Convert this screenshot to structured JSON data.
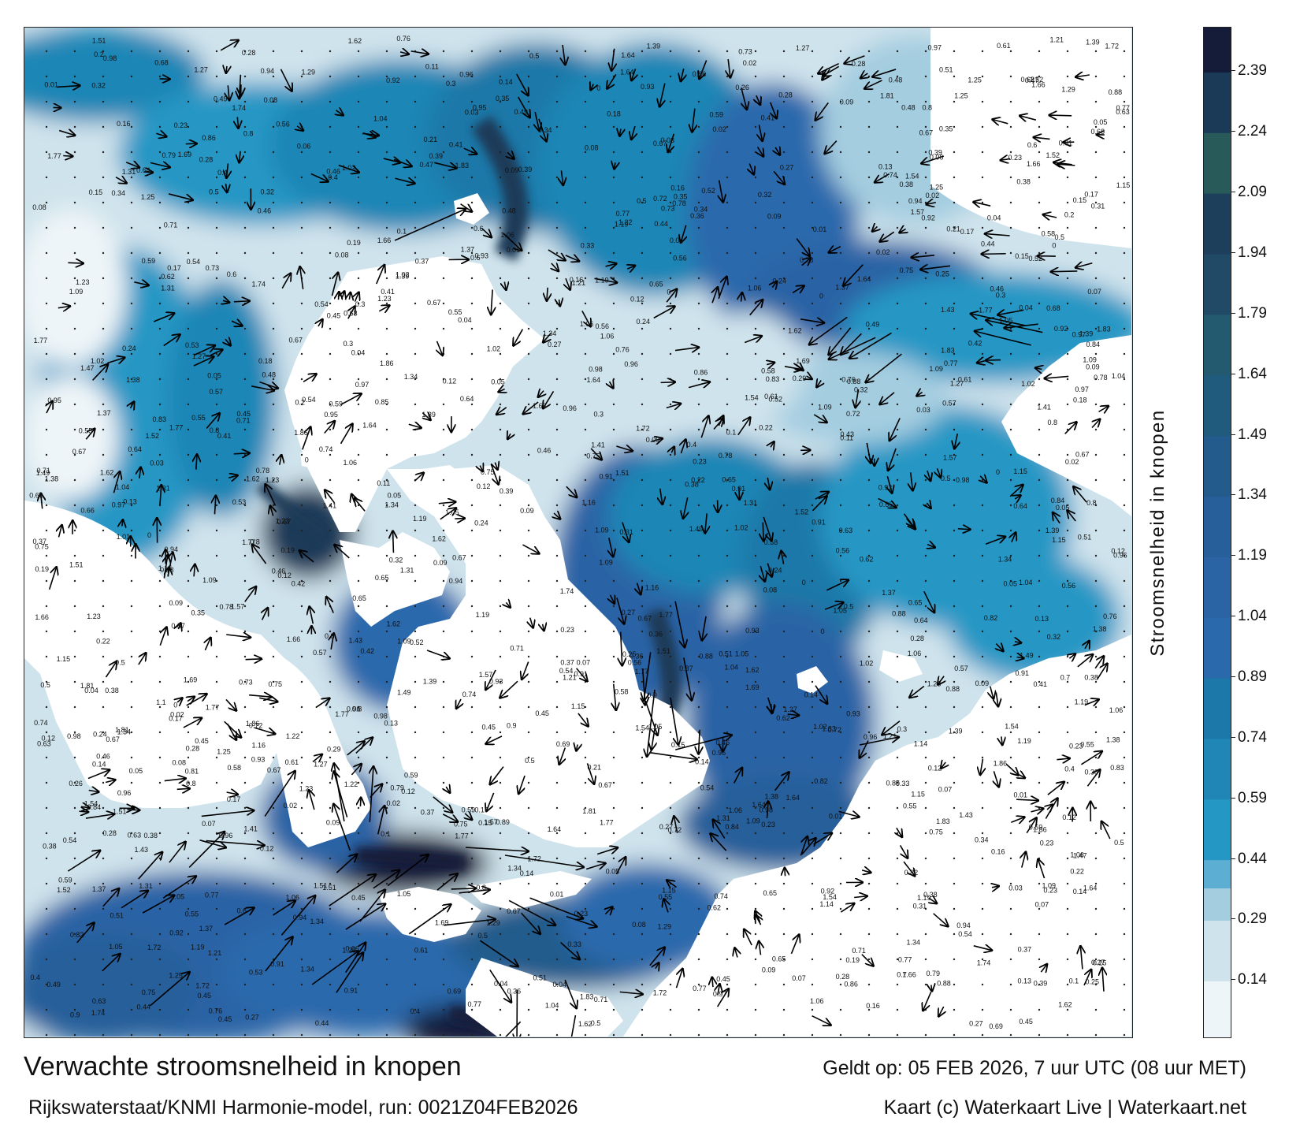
{
  "map": {
    "land_color": "#ffffff",
    "current_arrow_color": "#000000",
    "labels": [
      {
        "text": "0.46"
      },
      {
        "text": "0.44"
      },
      {
        "text": "0.33"
      },
      {
        "text": "0.45"
      },
      {
        "text": "0.3"
      },
      {
        "text": "0.35"
      },
      {
        "text": "0.13"
      },
      {
        "text": "0.32"
      },
      {
        "text": "0.12"
      },
      {
        "text": "0.14"
      },
      {
        "text": "0.17"
      },
      {
        "text": "0.11"
      },
      {
        "text": "0.09"
      },
      {
        "text": "0.1"
      },
      {
        "text": "0.08"
      },
      {
        "text": "0.07"
      },
      {
        "text": "0.06"
      },
      {
        "text": "0.05"
      },
      {
        "text": "0.04"
      },
      {
        "text": "0.03"
      },
      {
        "text": "0.43"
      },
      {
        "text": "0.47"
      },
      {
        "text": "0.56"
      },
      {
        "text": "0.27"
      },
      {
        "text": "0.24"
      },
      {
        "text": "0.12"
      },
      {
        "text": "0.02"
      },
      {
        "text": "0.61"
      },
      {
        "text": "0.51"
      },
      {
        "text": "0.53"
      },
      {
        "text": "1.22"
      },
      {
        "text": "1.23"
      },
      {
        "text": "0.93"
      },
      {
        "text": "1.25"
      },
      {
        "text": "0.52"
      },
      {
        "text": "0.71"
      },
      {
        "text": "0.8"
      },
      {
        "text": "0.75"
      },
      {
        "text": "0.6"
      },
      {
        "text": "0.98"
      },
      {
        "text": "0.76"
      },
      {
        "text": "0.62"
      },
      {
        "text": "0.29"
      },
      {
        "text": "0.23"
      },
      {
        "text": "0.28"
      },
      {
        "text": "0.19"
      },
      {
        "text": "0.2"
      },
      {
        "text": "0.21"
      },
      {
        "text": "0.22"
      },
      {
        "text": "0.26"
      },
      {
        "text": "0.36"
      },
      {
        "text": "0.5"
      },
      {
        "text": "0.55"
      },
      {
        "text": "0.57"
      },
      {
        "text": "0.64"
      },
      {
        "text": "0.72"
      },
      {
        "text": "0.78"
      },
      {
        "text": "0.84"
      },
      {
        "text": "0.92"
      },
      {
        "text": "0.95"
      },
      {
        "text": "1.1"
      },
      {
        "text": "1.16"
      },
      {
        "text": "1.21"
      },
      {
        "text": "1.29"
      },
      {
        "text": "1.41"
      },
      {
        "text": "1.47"
      },
      {
        "text": "1.52"
      },
      {
        "text": "1.57"
      },
      {
        "text": "1.62"
      },
      {
        "text": "1.83"
      },
      {
        "text": "1.34"
      },
      {
        "text": "1.38"
      },
      {
        "text": "1.04"
      },
      {
        "text": "1.06"
      },
      {
        "text": "0.01"
      },
      {
        "text": "0"
      },
      {
        "text": "0.15"
      },
      {
        "text": "0.16"
      },
      {
        "text": "0.18"
      },
      {
        "text": "0.25"
      },
      {
        "text": "0.31"
      },
      {
        "text": "0.34"
      },
      {
        "text": "0.37"
      },
      {
        "text": "0.38"
      },
      {
        "text": "0.39"
      },
      {
        "text": "0.4"
      },
      {
        "text": "0.41"
      },
      {
        "text": "0.42"
      },
      {
        "text": "0.48"
      },
      {
        "text": "0.49"
      },
      {
        "text": "0.54"
      },
      {
        "text": "0.58"
      },
      {
        "text": "0.59"
      },
      {
        "text": "0.63"
      },
      {
        "text": "0.65"
      },
      {
        "text": "0.66"
      },
      {
        "text": "0.67"
      },
      {
        "text": "0.68"
      },
      {
        "text": "0.69"
      },
      {
        "text": "0.7"
      },
      {
        "text": "0.73"
      },
      {
        "text": "0.74"
      },
      {
        "text": "0.77"
      },
      {
        "text": "0.79"
      },
      {
        "text": "0.81"
      },
      {
        "text": "0.82"
      },
      {
        "text": "0.83"
      },
      {
        "text": "0.85"
      },
      {
        "text": "0.86"
      },
      {
        "text": "0.87"
      },
      {
        "text": "0.88"
      },
      {
        "text": "0.89"
      },
      {
        "text": "0.9"
      },
      {
        "text": "0.91"
      },
      {
        "text": "0.94"
      },
      {
        "text": "0.96"
      },
      {
        "text": "0.97"
      },
      {
        "text": "1.01"
      },
      {
        "text": "1.02"
      },
      {
        "text": "1.05"
      },
      {
        "text": "1.09"
      },
      {
        "text": "1.14"
      },
      {
        "text": "1.15"
      },
      {
        "text": "1.19"
      },
      {
        "text": "1.27"
      },
      {
        "text": "1.31"
      },
      {
        "text": "1.37"
      },
      {
        "text": "1.39"
      },
      {
        "text": "1.43"
      },
      {
        "text": "1.49"
      },
      {
        "text": "1.51"
      },
      {
        "text": "1.54"
      },
      {
        "text": "1.64"
      },
      {
        "text": "1.66"
      },
      {
        "text": "1.69"
      },
      {
        "text": "1.72"
      },
      {
        "text": "1.77"
      },
      {
        "text": "1.81"
      },
      {
        "text": "1.86"
      },
      {
        "text": "1.74"
      }
    ]
  },
  "colorbar": {
    "label": "Stroomsnelheid in knopen",
    "ticks": [
      "2.39",
      "2.24",
      "2.09",
      "1.94",
      "1.79",
      "1.64",
      "1.49",
      "1.34",
      "1.19",
      "1.04",
      "0.89",
      "0.74",
      "0.59",
      "0.44",
      "0.29",
      "0.14"
    ],
    "tick_values": [
      2.39,
      2.24,
      2.09,
      1.94,
      1.79,
      1.64,
      1.49,
      1.34,
      1.19,
      1.04,
      0.89,
      0.74,
      0.59,
      0.44,
      0.29,
      0.14
    ],
    "range": [
      0,
      2.5
    ],
    "bands": [
      {
        "from": 0.0,
        "to": 0.14,
        "color": "#eef5f8"
      },
      {
        "from": 0.14,
        "to": 0.29,
        "color": "#cfe3ec"
      },
      {
        "from": 0.29,
        "to": 0.37,
        "color": "#a4cde0"
      },
      {
        "from": 0.37,
        "to": 0.44,
        "color": "#5caed3"
      },
      {
        "from": 0.44,
        "to": 0.59,
        "color": "#2597c5"
      },
      {
        "from": 0.59,
        "to": 0.74,
        "color": "#1f86b6"
      },
      {
        "from": 0.74,
        "to": 0.89,
        "color": "#1b78a8"
      },
      {
        "from": 0.89,
        "to": 1.04,
        "color": "#2a69ac"
      },
      {
        "from": 1.04,
        "to": 1.19,
        "color": "#2a64a5"
      },
      {
        "from": 1.19,
        "to": 1.34,
        "color": "#275f9a"
      },
      {
        "from": 1.34,
        "to": 1.49,
        "color": "#225b8c"
      },
      {
        "from": 1.49,
        "to": 1.64,
        "color": "#205a7c"
      },
      {
        "from": 1.64,
        "to": 1.79,
        "color": "#245a6f"
      },
      {
        "from": 1.79,
        "to": 1.94,
        "color": "#214a66"
      },
      {
        "from": 1.94,
        "to": 2.09,
        "color": "#1d3f5c"
      },
      {
        "from": 2.09,
        "to": 2.24,
        "color": "#285a5a"
      },
      {
        "from": 2.24,
        "to": 2.39,
        "color": "#1b3a58"
      },
      {
        "from": 2.39,
        "to": 2.5,
        "color": "#141c3a"
      }
    ]
  },
  "footer": {
    "title": "Verwachte stroomsnelheid in knopen",
    "model_run": "Rijkswaterstaat/KNMI Harmonie-model, run: 0021Z04FEB2026",
    "valid_time": "Geldt op: 05 FEB 2026, 7 uur UTC (08 uur MET)",
    "credit": "Kaart (c) Waterkaart Live | Waterkaart.net"
  }
}
